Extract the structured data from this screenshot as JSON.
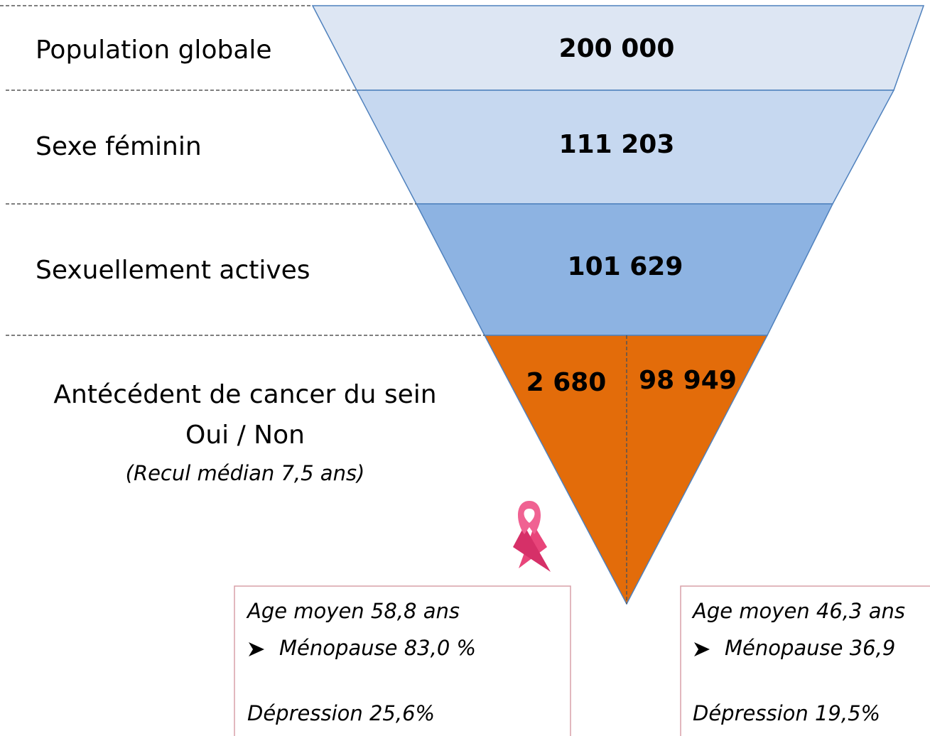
{
  "funnel": {
    "levels": [
      {
        "label": "Population globale",
        "value": "200 000"
      },
      {
        "label": "Sexe féminin",
        "value": "111 203"
      },
      {
        "label": "Sexuellement actives",
        "value": "101 629"
      }
    ],
    "split": {
      "label": [
        "Antécédent de cancer du sein",
        "Oui / Non"
      ],
      "note": "(Recul médian 7,5 ans)",
      "yes": "2 680",
      "no": "98 949"
    }
  },
  "boxes": [
    {
      "age": "Age moyen 58,8 ans",
      "menopause": "Ménopause 83,0 %",
      "depression": "Dépression 25,6%"
    },
    {
      "age": "Age moyen 46,3 ans",
      "menopause": "Ménopause 36,9",
      "depression": "Dépression 19,5%"
    }
  ]
}
